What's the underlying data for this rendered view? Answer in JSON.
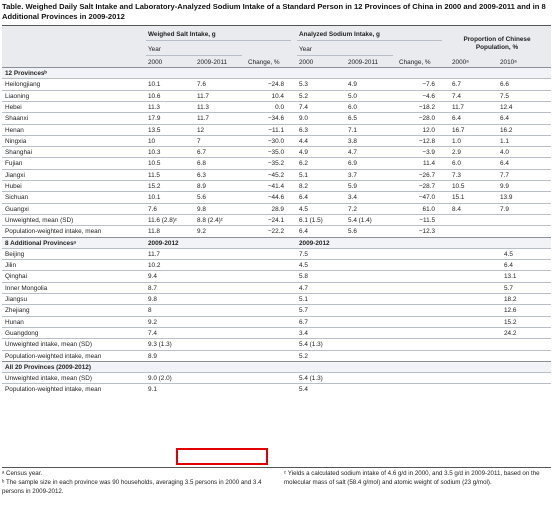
{
  "title": "Table. Weighed Daily Salt Intake and Laboratory-Analyzed Sodium Intake of a Standard Person in 12 Provinces of China in 2000 and 2009-2011 and in 8 Additional Provinces in 2009-2012",
  "header": {
    "group_salt": "Weighed Salt Intake, g",
    "group_sodium": "Analyzed Sodium Intake, g",
    "group_prop": "Proportion of Chinese Population, %",
    "year": "Year",
    "y2000": "2000",
    "y2009_2011": "2009-2011",
    "change": "Change, %",
    "y2000a": "2000ᵃ",
    "y2010a": "2010ᵃ"
  },
  "section1": {
    "label": "12 Provincesᵇ",
    "rows": [
      [
        "Heilongjiang",
        "10.1",
        "7.6",
        "−24.8",
        "5.3",
        "4.9",
        "−7.6",
        "6.7",
        "6.6"
      ],
      [
        "Liaoning",
        "10.6",
        "11.7",
        "10.4",
        "5.2",
        "5.0",
        "−4.6",
        "7.4",
        "7.5"
      ],
      [
        "Hebei",
        "11.3",
        "11.3",
        "0.0",
        "7.4",
        "6.0",
        "−18.2",
        "11.7",
        "12.4"
      ],
      [
        "Shaanxi",
        "17.9",
        "11.7",
        "−34.6",
        "9.0",
        "6.5",
        "−28.0",
        "6.4",
        "6.4"
      ],
      [
        "Henan",
        "13.5",
        "12",
        "−11.1",
        "6.3",
        "7.1",
        "12.0",
        "16.7",
        "16.2"
      ],
      [
        "Ningxia",
        "10",
        "7",
        "−30.0",
        "4.4",
        "3.8",
        "−12.8",
        "1.0",
        "1.1"
      ],
      [
        "Shanghai",
        "10.3",
        "6.7",
        "−35.0",
        "4.9",
        "4.7",
        "−3.9",
        "2.9",
        "4.0"
      ],
      [
        "Fujian",
        "10.5",
        "6.8",
        "−35.2",
        "6.2",
        "6.9",
        "11.4",
        "6.0",
        "6.4"
      ],
      [
        "Jiangxi",
        "11.5",
        "6.3",
        "−45.2",
        "5.1",
        "3.7",
        "−26.7",
        "7.3",
        "7.7"
      ],
      [
        "Hubei",
        "15.2",
        "8.9",
        "−41.4",
        "8.2",
        "5.9",
        "−28.7",
        "10.5",
        "9.9"
      ],
      [
        "Sichuan",
        "10.1",
        "5.6",
        "−44.6",
        "6.4",
        "3.4",
        "−47.0",
        "15.1",
        "13.9"
      ],
      [
        "Guangxi",
        "7.6",
        "9.8",
        "28.9",
        "4.5",
        "7.2",
        "61.0",
        "8.4",
        "7.9"
      ],
      [
        "Unweighted, mean (SD)",
        "11.6 (2.8)ᶜ",
        "8.8 (2.4)ᶜ",
        "−24.1",
        "6.1 (1.5)",
        "5.4 (1.4)",
        "−11.5",
        "",
        ""
      ],
      [
        "Population-weighted intake, mean",
        "11.8",
        "9.2",
        "−22.2",
        "6.4",
        "5.6",
        "−12.3",
        "",
        ""
      ]
    ]
  },
  "section2": {
    "label": "8 Additional Provincesᵃ",
    "year_salt": "2009-2012",
    "year_sodium": "2009-2012",
    "rows": [
      [
        "Beijing",
        "11.7",
        "7.5",
        "4.5"
      ],
      [
        "Jilin",
        "10.2",
        "4.5",
        "6.4"
      ],
      [
        "Qinghai",
        "9.4",
        "5.8",
        "13.1"
      ],
      [
        "Inner Mongolia",
        "8.7",
        "4.7",
        "5.7"
      ],
      [
        "Jiangsu",
        "9.8",
        "5.1",
        "18.2"
      ],
      [
        "Zhejiang",
        "8",
        "5.7",
        "12.6"
      ],
      [
        "Hunan",
        "9.2",
        "6.7",
        "15.2"
      ],
      [
        "Guangdong",
        "7.4",
        "3.4",
        "24.2"
      ],
      [
        "Unweighted intake, mean (SD)",
        "9.3 (1.3)",
        "5.4 (1.3)",
        ""
      ],
      [
        "Population-weighted intake, mean",
        "8.9",
        "5.2",
        ""
      ]
    ]
  },
  "section3": {
    "label": "All 20 Provinces (2009-2012)",
    "rows": [
      [
        "Unweighted intake, mean (SD)",
        "9.0 (2.0)",
        "5.4 (1.3)"
      ],
      [
        "Population-weighted intake, mean",
        "9.1",
        "5.4"
      ]
    ]
  },
  "footnotes": {
    "a": "ᵃ Census year.",
    "b": "ᵇ The sample size in each province was 90 households, averaging 3.5 persons in 2000 and 3.4 persons in 2009-2012.",
    "c": "ᶜ Yields a calculated sodium intake of 4.6 g/d in 2000, and 3.5 g/d in 2009-2011, based on the molecular mass of salt (58.4 g/mol) and atomic weight of sodium (23 g/mol)."
  },
  "colors": {
    "header_bg": "#e9ebef",
    "rule": "#b9bfc9",
    "highlight_box": "#e00000"
  }
}
